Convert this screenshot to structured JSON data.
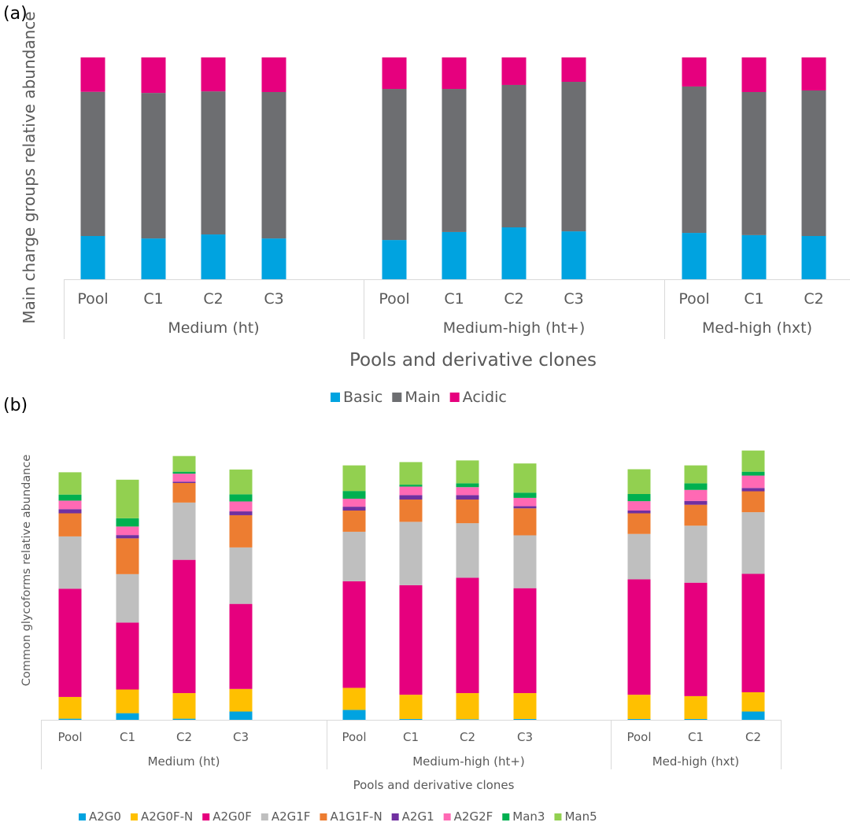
{
  "chart_data": [
    {
      "panel_label": "(a)",
      "type": "bar",
      "stacked": true,
      "title": "",
      "xlabel": "Pools and derivative clones",
      "ylabel": "Main charge groups relative abundance",
      "ylim": [
        0,
        100
      ],
      "grid": false,
      "legend_position": "bottom",
      "groups": [
        {
          "name": "Medium (ht)",
          "categories": [
            "Pool",
            "C1",
            "C2",
            "C3"
          ]
        },
        {
          "name": "Medium-high (ht+)",
          "categories": [
            "Pool",
            "C1",
            "C2",
            "C3"
          ]
        },
        {
          "name": "Med-high (hxt)",
          "categories": [
            "Pool",
            "C1",
            "C2"
          ]
        }
      ],
      "series": [
        {
          "name": "Basic",
          "color": "#00a3e0",
          "values": [
            19.5,
            18.4,
            20.2,
            18.4,
            17.7,
            21.3,
            23.4,
            21.6,
            20.9,
            19.9,
            19.5
          ]
        },
        {
          "name": "Main",
          "color": "#6d6e71",
          "values": [
            65.0,
            65.6,
            64.5,
            66.0,
            68.1,
            64.5,
            64.2,
            67.4,
            66.0,
            64.5,
            65.6
          ]
        },
        {
          "name": "Acidic",
          "color": "#e6007e",
          "values": [
            15.5,
            16.0,
            15.3,
            15.6,
            14.2,
            14.2,
            12.4,
            11.0,
            13.1,
            15.6,
            14.9
          ]
        }
      ]
    },
    {
      "panel_label": "(b)",
      "type": "bar",
      "stacked": true,
      "title": "",
      "xlabel": "Pools and derivative clones",
      "ylabel": "Common glycoforms relative abundance",
      "ylim": [
        0,
        100
      ],
      "grid": false,
      "legend_position": "bottom",
      "groups": [
        {
          "name": "Medium (ht)",
          "categories": [
            "Pool",
            "C1",
            "C2",
            "C3"
          ]
        },
        {
          "name": "Medium-high (ht+)",
          "categories": [
            "Pool",
            "C1",
            "C2",
            "C3"
          ]
        },
        {
          "name": "Med-high (hxt)",
          "categories": [
            "Pool",
            "C1",
            "C2"
          ]
        }
      ],
      "series": [
        {
          "name": "A2G0",
          "color": "#00a3e0",
          "values": [
            0.4,
            2.4,
            0.4,
            3.0,
            3.6,
            0.3,
            0.2,
            0.3,
            0.3,
            0.3,
            3.0
          ]
        },
        {
          "name": "A2G0F-N",
          "color": "#ffc000",
          "values": [
            7.9,
            8.6,
            9.3,
            8.2,
            8.0,
            8.8,
            9.5,
            9.4,
            8.8,
            8.3,
            7.0
          ]
        },
        {
          "name": "A2G0F",
          "color": "#e6007e",
          "values": [
            39.3,
            24.3,
            48.4,
            30.9,
            38.7,
            39.8,
            41.9,
            38.1,
            41.9,
            41.2,
            43.0
          ]
        },
        {
          "name": "A2G1F",
          "color": "#bfbfbf",
          "values": [
            19.0,
            17.6,
            20.8,
            20.5,
            18.0,
            23.0,
            19.8,
            19.2,
            16.5,
            20.7,
            22.4
          ]
        },
        {
          "name": "A1G1F-N",
          "color": "#ed7d31",
          "values": [
            8.4,
            13.0,
            7.1,
            11.7,
            7.7,
            8.1,
            8.6,
            9.8,
            7.5,
            7.6,
            7.6
          ]
        },
        {
          "name": "A2G1",
          "color": "#7030a0",
          "values": [
            1.5,
            1.2,
            0.5,
            1.4,
            1.4,
            1.6,
            1.6,
            0.8,
            1.0,
            1.4,
            1.2
          ]
        },
        {
          "name": "A2G2F",
          "color": "#ff69b4",
          "values": [
            3.1,
            3.1,
            2.9,
            3.6,
            2.9,
            3.1,
            2.9,
            3.0,
            3.4,
            4.0,
            4.5
          ]
        },
        {
          "name": "Man3",
          "color": "#00b050",
          "values": [
            2.2,
            3.0,
            0.7,
            2.6,
            2.8,
            0.7,
            1.4,
            1.9,
            2.6,
            2.4,
            1.4
          ]
        },
        {
          "name": "Man5",
          "color": "#92d050",
          "values": [
            8.1,
            14.0,
            5.7,
            9.0,
            9.3,
            8.2,
            8.3,
            10.6,
            9.0,
            6.5,
            7.7
          ]
        }
      ]
    }
  ]
}
